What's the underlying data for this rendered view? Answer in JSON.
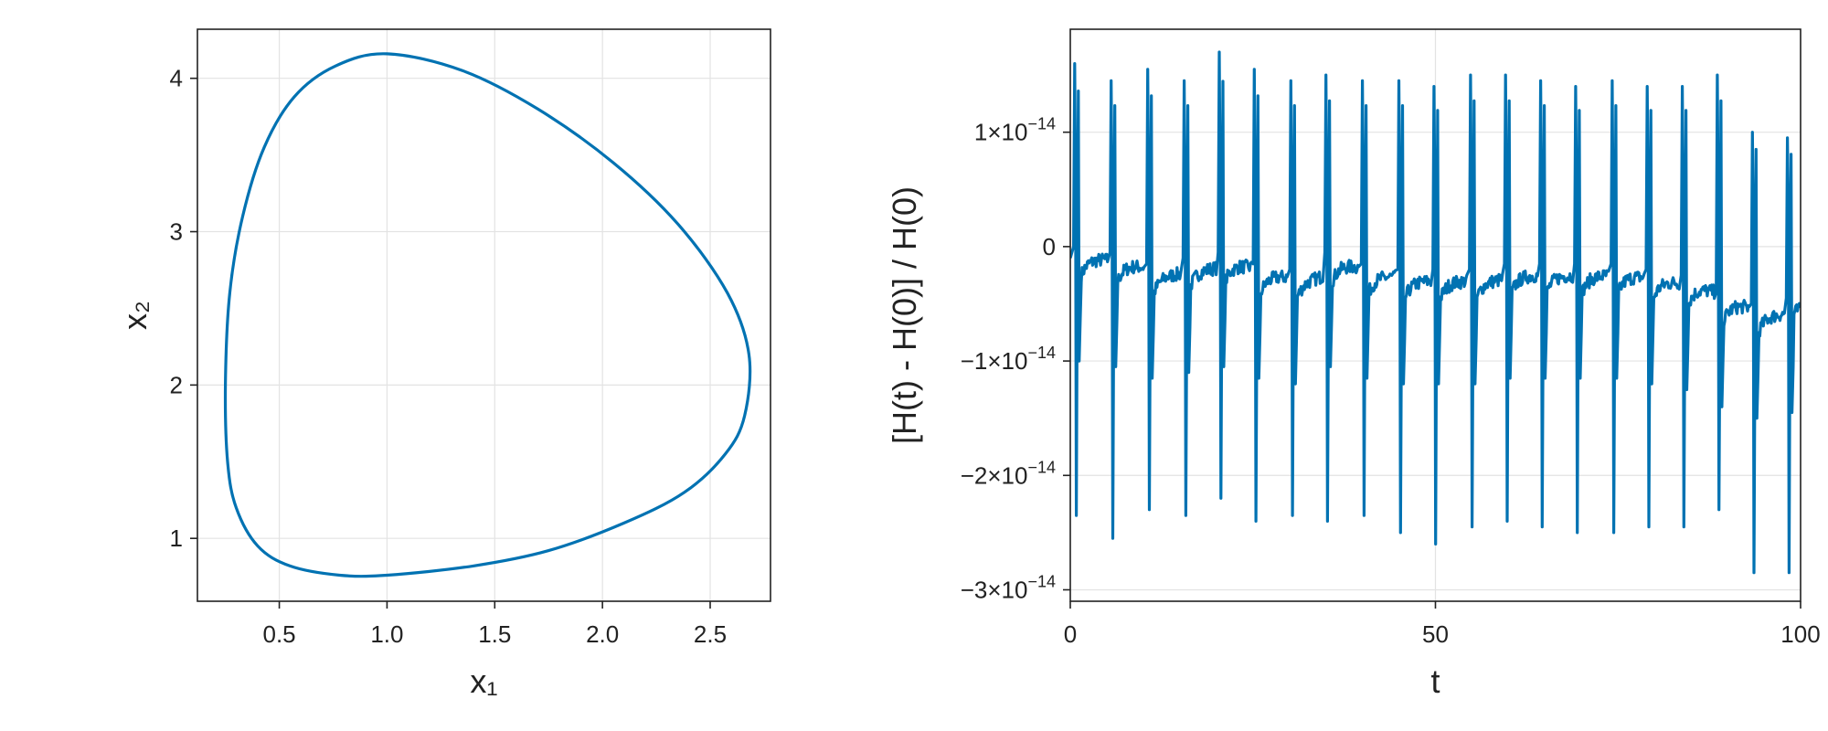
{
  "chart_data": [
    {
      "type": "line",
      "title": "",
      "xlabel": "x₁",
      "ylabel": "x₂",
      "xlim": [
        0.12,
        2.78
      ],
      "ylim": [
        0.59,
        4.32
      ],
      "xticks": [
        0.5,
        1.0,
        1.5,
        2.0,
        2.5
      ],
      "xtick_labels": [
        "0.5",
        "1.0",
        "1.5",
        "2.0",
        "2.5"
      ],
      "yticks": [
        1,
        2,
        3,
        4
      ],
      "ytick_labels": [
        "1",
        "2",
        "3",
        "4"
      ],
      "grid": true,
      "color": "#0072b2",
      "series": [
        {
          "x": [
            0.25,
            0.27,
            0.33,
            0.43,
            0.57,
            0.76,
            1.0,
            1.35,
            1.7,
            2.05,
            2.35,
            2.58,
            2.68,
            2.66,
            2.57,
            2.38,
            2.1,
            1.75,
            1.4,
            1.0,
            0.78,
            0.55,
            0.4,
            0.3,
            0.26,
            0.25
          ],
          "y": [
            2.0,
            2.6,
            3.1,
            3.55,
            3.88,
            4.08,
            4.16,
            4.05,
            3.8,
            3.45,
            3.05,
            2.6,
            2.2,
            1.8,
            1.55,
            1.3,
            1.1,
            0.92,
            0.82,
            0.76,
            0.76,
            0.82,
            0.95,
            1.2,
            1.5,
            2.0
          ]
        }
      ]
    },
    {
      "type": "line",
      "title": "",
      "xlabel": "t",
      "ylabel": "[H(t) - H(0)] / H(0)",
      "xlim": [
        0,
        100
      ],
      "ylim": [
        -3.1e-14,
        1.9e-14
      ],
      "xticks": [
        0,
        50,
        100
      ],
      "xtick_labels": [
        "0",
        "50",
        "100"
      ],
      "yticks": [
        1e-14,
        0,
        -1e-14,
        -2e-14,
        -3e-14
      ],
      "ytick_labels": [
        {
          "mant": "1",
          "exp": "−14",
          "plain": ""
        },
        {
          "mant": "",
          "exp": "",
          "plain": "0"
        },
        {
          "mant": "−1",
          "exp": "−14",
          "plain": ""
        },
        {
          "mant": "−2",
          "exp": "−14",
          "plain": ""
        },
        {
          "mant": "−3",
          "exp": "−14",
          "plain": ""
        }
      ],
      "times10": "×10",
      "grid": true,
      "color": "#0072b2",
      "spikes": [
        {
          "t": 0.6,
          "top": 1.6,
          "bot": -2.35,
          "base": -0.1
        },
        {
          "t": 5.6,
          "top": 1.45,
          "bot": -2.55,
          "base": -0.15
        },
        {
          "t": 10.6,
          "top": 1.55,
          "bot": -2.3,
          "base": -0.25
        },
        {
          "t": 15.6,
          "top": 1.45,
          "bot": -2.35,
          "base": -0.2
        },
        {
          "t": 20.4,
          "top": 1.7,
          "bot": -2.2,
          "base": -0.15
        },
        {
          "t": 25.2,
          "top": 1.55,
          "bot": -2.4,
          "base": -0.25
        },
        {
          "t": 30.2,
          "top": 1.45,
          "bot": -2.35,
          "base": -0.3
        },
        {
          "t": 35.0,
          "top": 1.5,
          "bot": -2.4,
          "base": -0.15
        },
        {
          "t": 40.0,
          "top": 1.45,
          "bot": -2.35,
          "base": -0.25
        },
        {
          "t": 45.0,
          "top": 1.45,
          "bot": -2.5,
          "base": -0.3
        },
        {
          "t": 49.8,
          "top": 1.4,
          "bot": -2.6,
          "base": -0.3
        },
        {
          "t": 54.8,
          "top": 1.5,
          "bot": -2.45,
          "base": -0.3
        },
        {
          "t": 59.6,
          "top": 1.5,
          "bot": -2.4,
          "base": -0.25
        },
        {
          "t": 64.4,
          "top": 1.45,
          "bot": -2.45,
          "base": -0.25
        },
        {
          "t": 69.2,
          "top": 1.4,
          "bot": -2.5,
          "base": -0.25
        },
        {
          "t": 74.2,
          "top": 1.45,
          "bot": -2.5,
          "base": -0.25
        },
        {
          "t": 79.0,
          "top": 1.4,
          "bot": -2.45,
          "base": -0.3
        },
        {
          "t": 83.8,
          "top": 1.4,
          "bot": -2.45,
          "base": -0.35
        },
        {
          "t": 88.6,
          "top": 1.5,
          "bot": -2.3,
          "base": -0.5
        },
        {
          "t": 93.4,
          "top": 1.0,
          "bot": -2.85,
          "base": -0.6
        },
        {
          "t": 98.2,
          "top": 0.95,
          "bot": -2.85,
          "base": -0.55
        }
      ]
    }
  ]
}
